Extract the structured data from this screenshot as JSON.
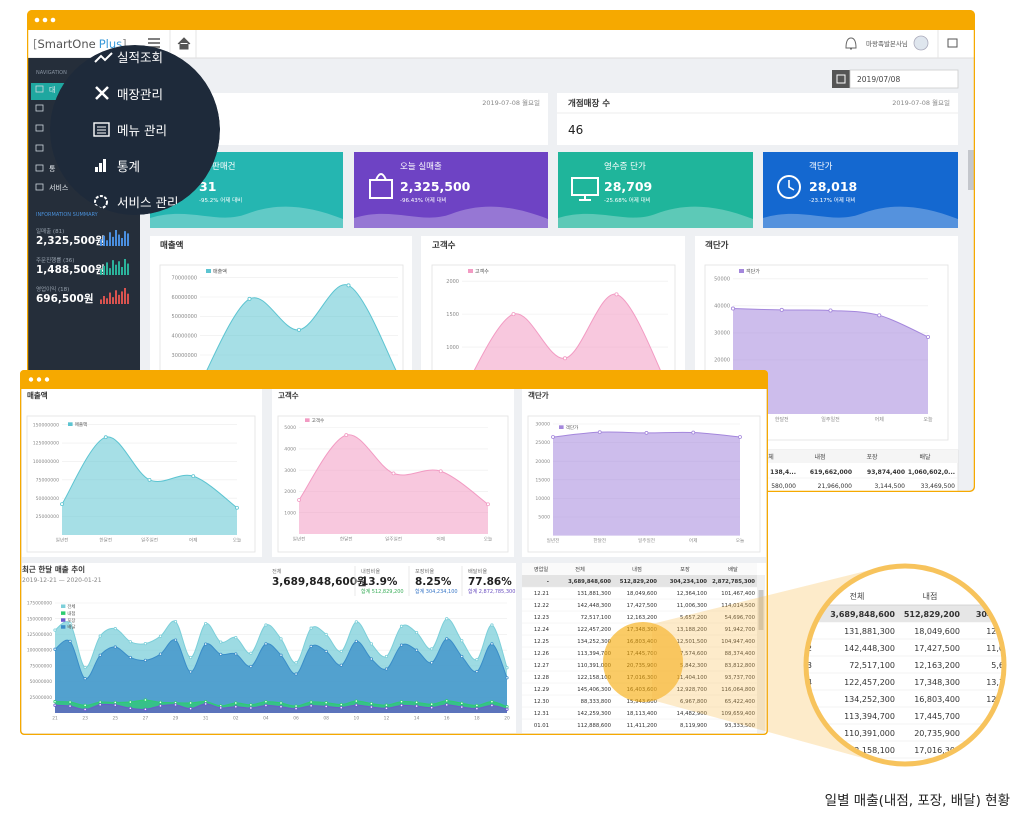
{
  "window1": {
    "logo_left": "[",
    "logo": "SmartOne",
    "logo_accent": "Plus",
    "logo_right": "]",
    "user": "마왕족발본사님",
    "date": "2019/07/08",
    "nav_heading": "NAVIGATION",
    "sidebar_items": [
      "대",
      "통",
      "서비스"
    ],
    "summary_heading": "INFORMATION SUMMARY",
    "summary": [
      {
        "label": "일매출 (81)",
        "value": "2,325,500원",
        "color": "#4a8fe0",
        "spark": [
          6,
          9,
          5,
          12,
          8,
          14,
          10,
          7,
          13,
          11
        ]
      },
      {
        "label": "주문진행률 (36)",
        "value": "1,488,500원",
        "color": "#2bb39b",
        "spark": [
          5,
          8,
          11,
          6,
          13,
          9,
          12,
          7,
          14,
          10
        ]
      },
      {
        "label": "영업이익 (18)",
        "value": "696,500원",
        "color": "#d9534f",
        "spark": [
          4,
          7,
          5,
          10,
          6,
          12,
          8,
          11,
          14,
          9
        ]
      }
    ],
    "menu": [
      "실적조회",
      "매장관리",
      "메뉴 관리",
      "통계",
      "서비스 관리"
    ],
    "info_cards": [
      {
        "date": "2019-07-08 월요일"
      },
      {
        "title": "개점매장 수",
        "date": "2019-07-08 월요일",
        "value": "46"
      }
    ],
    "stats": [
      {
        "title": "판매건",
        "value": "31",
        "change": "-95.2% 어제 대비",
        "color": "#25b6b1"
      },
      {
        "title": "오늘 실매출",
        "value": "2,325,500",
        "change": "-96.43% 어제 대비",
        "color": "#6e43c4"
      },
      {
        "title": "영수증 단가",
        "value": "28,709",
        "change": "-25.68% 어제 대비",
        "color": "#1fb59b"
      },
      {
        "title": "객단가",
        "value": "28,018",
        "change": "-23.17% 어제 대비",
        "color": "#1468d0"
      }
    ],
    "charts": [
      {
        "type": "area",
        "title": "매출액",
        "categories": [
          "일년전",
          "한달전",
          "일주일전",
          "어제",
          "오늘"
        ],
        "series": [
          {
            "name": "매출액",
            "color": "#5cc4d1",
            "values": [
              15000000,
              59000000,
              43000000,
              66000000,
              20000000
            ]
          }
        ],
        "ylim": [
          0,
          75000000
        ],
        "yticks": [
          30000000,
          40000000,
          50000000,
          60000000,
          70000000
        ]
      },
      {
        "type": "area",
        "title": "고객수",
        "categories": [
          "일년전",
          "한달전",
          "일주일전",
          "어제",
          "오늘"
        ],
        "series": [
          {
            "name": "고객수",
            "color": "#f29bc3",
            "values": [
              300,
              1500,
              830,
              1800,
              400
            ]
          }
        ],
        "ylim": [
          0,
          2200
        ],
        "yticks": [
          1000,
          1500,
          2000
        ]
      },
      {
        "type": "area",
        "title": "객단가",
        "categories": [
          "일년전",
          "한달전",
          "일주일전",
          "어제",
          "오늘"
        ],
        "series": [
          {
            "name": "객단가",
            "color": "#a487dc",
            "values": [
              39000,
              38500,
              38300,
              36500,
              28500
            ]
          }
        ],
        "ylim": [
          0,
          54000
        ],
        "yticks": [
          20000,
          30000,
          40000,
          50000
        ]
      }
    ],
    "table": {
      "columns": [
        "체",
        "내점",
        "포장",
        "배달"
      ],
      "rows": [
        [
          "138,4...",
          "619,662,000",
          "93,874,400",
          "1,060,602,0..."
        ],
        [
          "580,000",
          "21,966,000",
          "3,144,500",
          "33,469,500"
        ]
      ]
    }
  },
  "window2": {
    "charts": [
      {
        "type": "area",
        "title": "매출액",
        "categories": [
          "일년전",
          "한달전",
          "일주일전",
          "어제",
          "오늘"
        ],
        "series": [
          {
            "name": "매출액",
            "color": "#5cc4d1",
            "values": [
              42000000,
              133000000,
              75000000,
              80000000,
              37000000
            ]
          }
        ],
        "ylim": [
          0,
          155000000
        ],
        "yticks": [
          25000000,
          50000000,
          75000000,
          100000000,
          125000000,
          150000000
        ]
      },
      {
        "type": "area",
        "title": "고객수",
        "categories": [
          "일년전",
          "한달전",
          "일주일전",
          "어제",
          "오늘"
        ],
        "series": [
          {
            "name": "고객수",
            "color": "#f29bc3",
            "values": [
              1600,
              4650,
              2850,
              2950,
              1400
            ]
          }
        ],
        "ylim": [
          0,
          5500
        ],
        "yticks": [
          1000,
          2000,
          3000,
          4000,
          5000
        ]
      },
      {
        "type": "area",
        "title": "객단가",
        "categories": [
          "일년전",
          "한달전",
          "일주일전",
          "어제",
          "오늘"
        ],
        "series": [
          {
            "name": "객단가",
            "color": "#a487dc",
            "values": [
              26500,
              27800,
              27600,
              27700,
              26500
            ]
          }
        ],
        "ylim": [
          0,
          30000
        ],
        "yticks": [
          5000,
          10000,
          15000,
          20000,
          25000,
          30000
        ]
      }
    ],
    "trend": {
      "type": "area",
      "title": "최근 한달 매출 추이",
      "subtitle": "2019-12-21 — 2020-01-21",
      "categories": [
        "21",
        null,
        "23",
        null,
        "25",
        null,
        "27",
        null,
        "29",
        null,
        "31",
        null,
        "02",
        null,
        "04",
        null,
        "06",
        null,
        "08",
        null,
        "10",
        null,
        "12",
        null,
        "14",
        null,
        "16",
        null,
        "18",
        null,
        "20"
      ],
      "series": [
        {
          "name": "전체",
          "color": "#7ccfd9",
          "values": [
            131881300,
            142448300,
            72517100,
            122457200,
            134252300,
            113394700,
            110391000,
            122158100,
            145406300,
            88333800,
            142259300,
            112888600,
            120000000,
            95000000,
            140000000,
            118000000,
            80000000,
            135000000,
            125000000,
            98000000,
            145000000,
            110000000,
            90000000,
            138000000,
            128000000,
            102000000,
            150000000,
            115000000,
            85000000,
            140000000,
            72000000
          ]
        },
        {
          "name": "내점",
          "color": "#2ecc71",
          "values": [
            18049600,
            17427500,
            12163200,
            17348300,
            16803400,
            17445700,
            20735900,
            17016300,
            16403600,
            15943600,
            18113400,
            11411200,
            16000000,
            13000000,
            18000000,
            16000000,
            11000000,
            17500000,
            16500000,
            13500000,
            19000000,
            15000000,
            12500000,
            18000000,
            17000000,
            14000000,
            19500000,
            15500000,
            12000000,
            18000000,
            10000000
          ]
        },
        {
          "name": "포장",
          "color": "#6a5acd",
          "values": [
            12364100,
            11006300,
            5657200,
            13188200,
            12501500,
            7574600,
            5842300,
            11404100,
            12928700,
            6967800,
            14482900,
            8119900,
            10000000,
            8000000,
            12000000,
            10000000,
            7000000,
            11500000,
            10500000,
            8500000,
            12500000,
            9500000,
            7500000,
            12000000,
            11000000,
            8500000,
            13000000,
            9500000,
            7000000,
            12000000,
            6000000
          ]
        },
        {
          "name": "배달",
          "color": "#3a8dc8",
          "values": [
            101467400,
            114014500,
            54696700,
            91942700,
            104947400,
            88374400,
            83812800,
            93737700,
            116064800,
            65422400,
            109659400,
            93333500,
            94000000,
            74000000,
            110000000,
            92000000,
            62000000,
            106000000,
            98000000,
            76000000,
            114000000,
            86000000,
            70000000,
            108000000,
            100000000,
            80000000,
            118000000,
            90000000,
            66000000,
            110000000,
            56000000
          ]
        }
      ],
      "ylim": [
        0,
        175000000
      ],
      "yticks": [
        25000000,
        50000000,
        75000000,
        100000000,
        125000000,
        150000000,
        175000000
      ]
    },
    "summary": [
      {
        "label": "전체",
        "value": "3,689,848,600원"
      },
      {
        "label": "내점비율",
        "value": "13.9%",
        "total": "합계 512,829,200",
        "color": "#3aae5a"
      },
      {
        "label": "포장비율",
        "value": "8.25%",
        "total": "합계 304,234,100",
        "color": "#3a78c8"
      },
      {
        "label": "배달비율",
        "value": "77.86%",
        "total": "합계 2,872,785,300",
        "color": "#6a4fc0"
      }
    ],
    "table": {
      "columns": [
        "영업일",
        "전체",
        "내점",
        "포장",
        "배달"
      ],
      "rows": [
        [
          "-",
          "3,689,848,600",
          "512,829,200",
          "304,234,100",
          "2,872,785,300"
        ],
        [
          "12.21",
          "131,881,300",
          "18,049,600",
          "12,364,100",
          "101,467,400"
        ],
        [
          "12.22",
          "142,448,300",
          "17,427,500",
          "11,006,300",
          "114,014,500"
        ],
        [
          "12.23",
          "72,517,100",
          "12,163,200",
          "5,657,200",
          "54,696,700"
        ],
        [
          "12.24",
          "122,457,200",
          "17,348,300",
          "13,188,200",
          "91,942,700"
        ],
        [
          "12.25",
          "134,252,300",
          "16,803,400",
          "12,501,500",
          "104,947,400"
        ],
        [
          "12.26",
          "113,394,700",
          "17,445,700",
          "7,574,600",
          "88,374,400"
        ],
        [
          "12.27",
          "110,391,000",
          "20,735,900",
          "5,842,300",
          "83,812,800"
        ],
        [
          "12.28",
          "122,158,100",
          "17,016,300",
          "11,404,100",
          "93,737,700"
        ],
        [
          "12.29",
          "145,406,300",
          "16,403,600",
          "12,928,700",
          "116,064,800"
        ],
        [
          "12.30",
          "88,333,800",
          "15,943,600",
          "6,967,800",
          "65,422,400"
        ],
        [
          "12.31",
          "142,259,300",
          "18,113,400",
          "14,482,900",
          "109,659,400"
        ],
        [
          "01.01",
          "112,888,600",
          "11,411,200",
          "8,119,900",
          "93,333,500"
        ]
      ]
    }
  },
  "caption": "일별 매출(내점, 포장, 배달) 현황"
}
